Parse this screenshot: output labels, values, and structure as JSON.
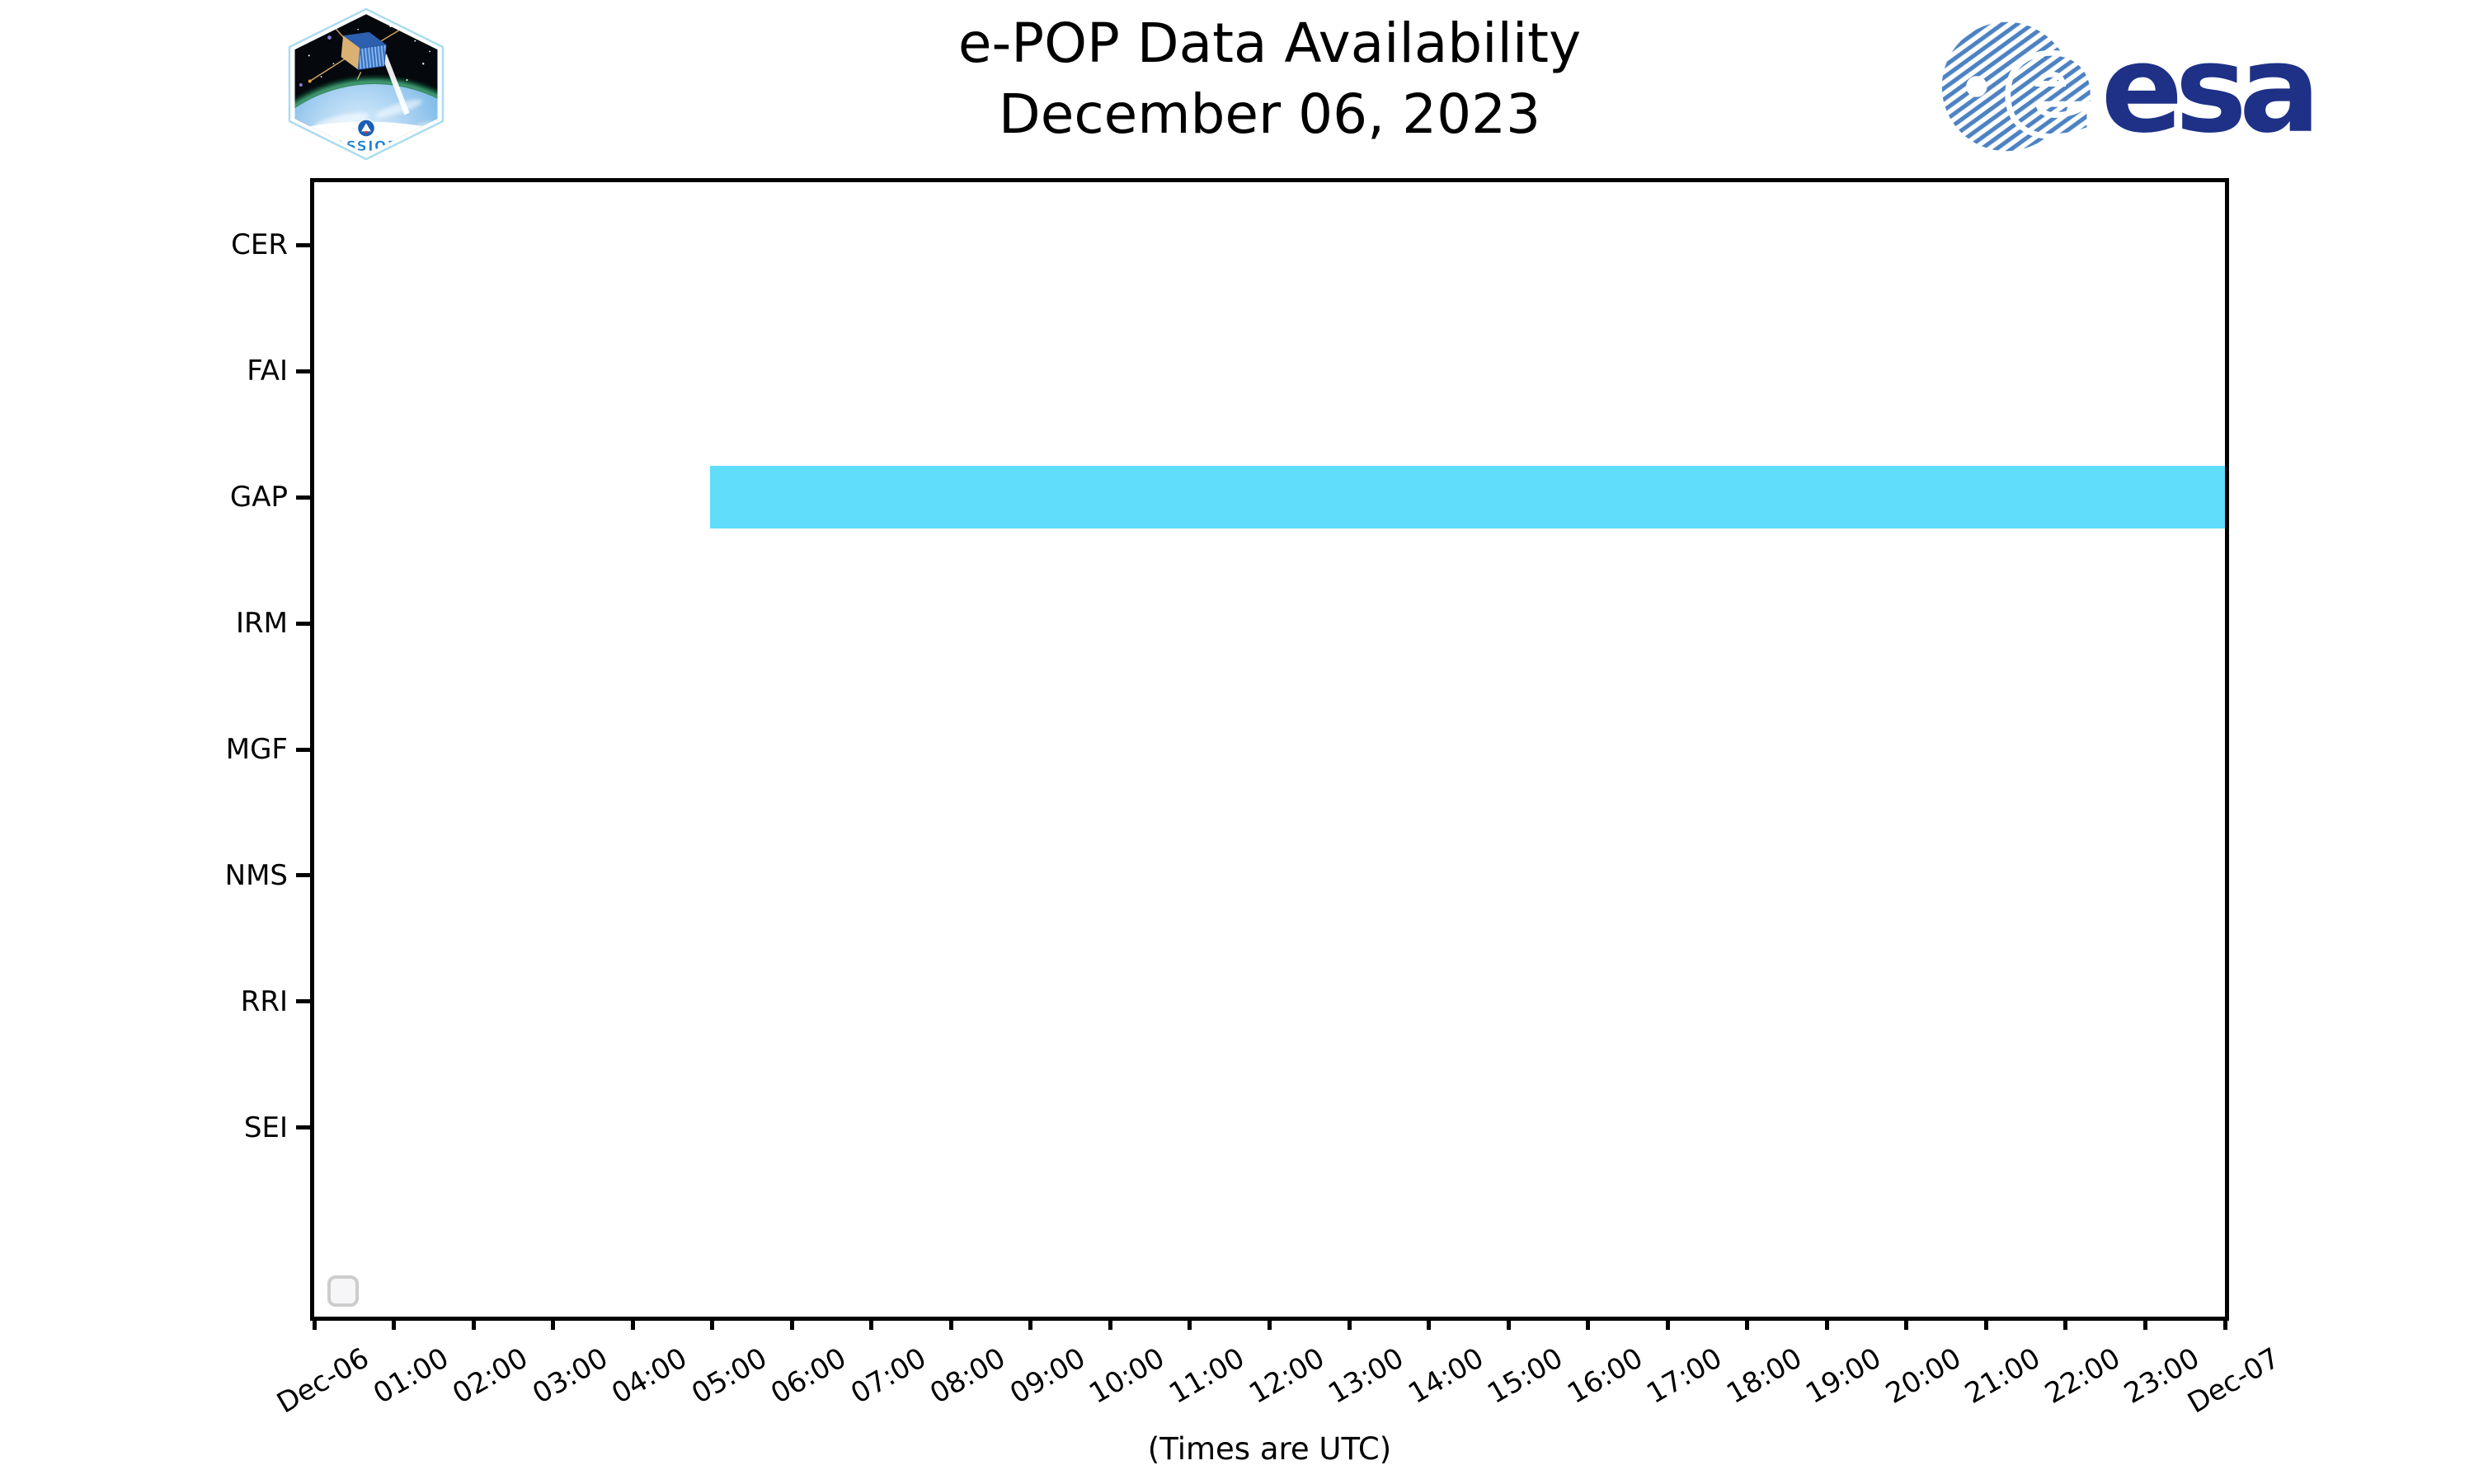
{
  "header": {
    "title_line1": "e-POP Data Availability",
    "title_line2": "December 06, 2023",
    "cassiope_patch_label": "CASSIOPE",
    "esa_logo_text": "esa"
  },
  "footer": {
    "xlabel": "(Times are UTC)"
  },
  "chart_data": {
    "type": "bar",
    "subtype": "gantt-availability-timeline",
    "title": "e-POP Data Availability",
    "subtitle": "December 06, 2023",
    "xlabel": "(Times are UTC)",
    "grid": false,
    "x_axis": {
      "start": "Dec-06 00:00",
      "end": "Dec-07 00:00",
      "range_hours": [
        0,
        24
      ],
      "tick_interval_hours": 1,
      "tick_labels": [
        "Dec-06",
        "01:00",
        "02:00",
        "03:00",
        "04:00",
        "05:00",
        "06:00",
        "07:00",
        "08:00",
        "09:00",
        "10:00",
        "11:00",
        "12:00",
        "13:00",
        "14:00",
        "15:00",
        "16:00",
        "17:00",
        "18:00",
        "19:00",
        "20:00",
        "21:00",
        "22:00",
        "23:00",
        "Dec-07"
      ],
      "tick_label_rotation_deg": 30
    },
    "y_axis": {
      "instruments": [
        "CER",
        "FAI",
        "GAP",
        "IRM",
        "MGF",
        "NMS",
        "RRI",
        "SEI"
      ]
    },
    "availability": [
      {
        "instrument": "GAP",
        "start_hour": 4.97,
        "end_hour": 24.0,
        "start_time": "04:58",
        "end_time": "Dec-07 00:00",
        "color": "#5fddfb"
      }
    ],
    "legend": {
      "visible": true,
      "entries": []
    }
  },
  "colors": {
    "background": "#ffffff",
    "axis": "#000000",
    "bar": "#5fddfb",
    "esa_navy": "#1e3187",
    "esa_stripe_blue": "#4d82c4",
    "cassiope_border": "#aadcee",
    "cassiope_text_blue": "#1a7fd4"
  }
}
